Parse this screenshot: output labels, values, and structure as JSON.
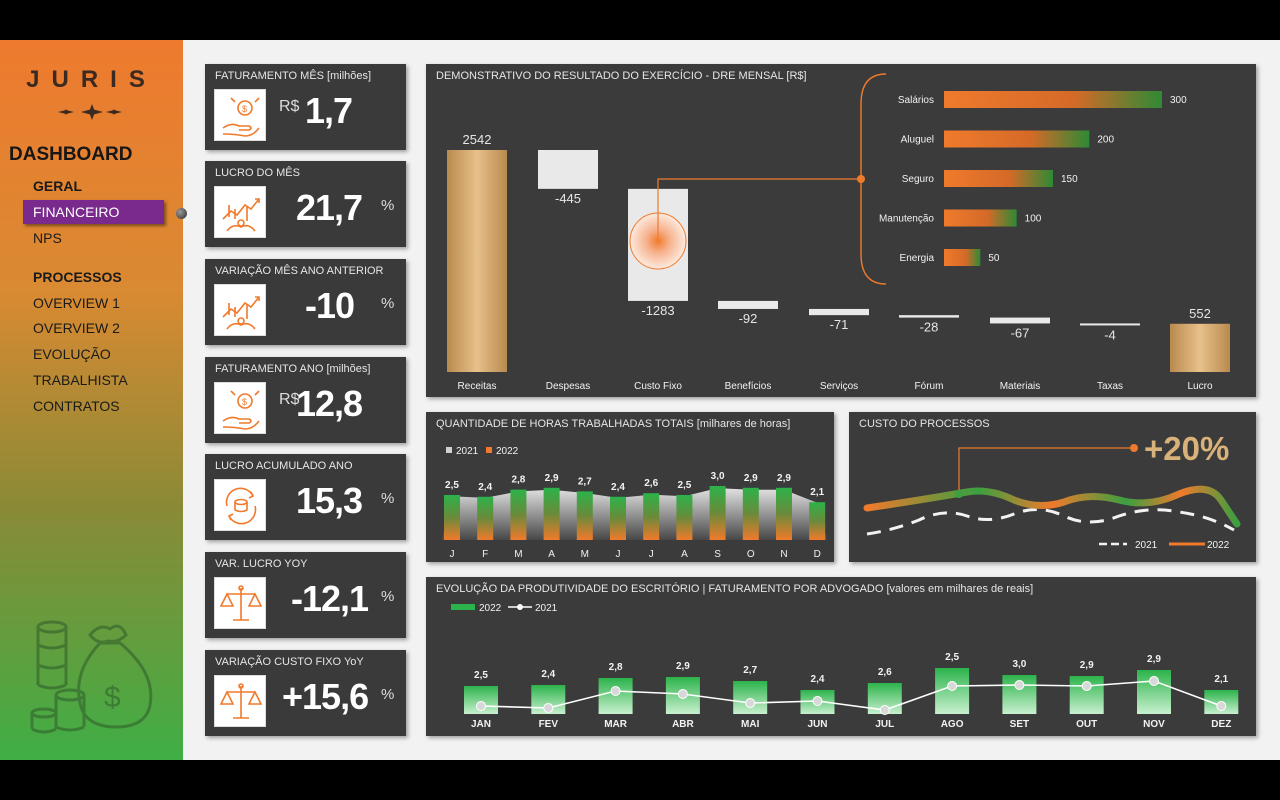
{
  "sidebar": {
    "logo": "JURIS",
    "title": "DASHBOARD",
    "items": [
      {
        "label": "GERAL",
        "head": true
      },
      {
        "label": "FINANCEIRO",
        "active": true
      },
      {
        "label": "NPS"
      },
      {
        "label": "PROCESSOS",
        "head": true
      },
      {
        "label": "OVERVIEW 1"
      },
      {
        "label": "OVERVIEW 2"
      },
      {
        "label": "EVOLUÇÃO"
      },
      {
        "label": "TRABALHISTA"
      },
      {
        "label": "CONTRATOS"
      }
    ]
  },
  "kpis": [
    {
      "label": "FATURAMENTO MÊS [milhões]",
      "prefix": "R$",
      "value": "1,7",
      "suffix": "",
      "icon": "hand-money-icon"
    },
    {
      "label": "LUCRO DO MÊS",
      "prefix": "",
      "value": "21,7",
      "suffix": "%",
      "icon": "growth-chart-icon"
    },
    {
      "label": "VARIAÇÃO MÊS ANO ANTERIOR",
      "prefix": "",
      "value": "-10",
      "suffix": "%",
      "icon": "growth-chart-icon"
    },
    {
      "label": "FATURAMENTO ANO [milhões]",
      "prefix": "R$",
      "value": "12,8",
      "suffix": "",
      "icon": "hand-money-icon"
    },
    {
      "label": "LUCRO ACUMULADO ANO",
      "prefix": "",
      "value": "15,3",
      "suffix": "%",
      "icon": "coins-cycle-icon"
    },
    {
      "label": "VAR. LUCRO YOY",
      "prefix": "",
      "value": "-12,1",
      "suffix": "%",
      "icon": "scale-icon"
    },
    {
      "label": "VARIAÇÃO CUSTO FIXO YoY",
      "prefix": "",
      "value": "+15,6",
      "suffix": "%",
      "icon": "scale-icon"
    }
  ],
  "dre": {
    "title": "DEMONSTRATIVO DO RESULTADO DO EXERCÍCIO - DRE MENSAL [R$]",
    "chart_data": {
      "type": "bar",
      "categories": [
        "Receitas",
        "Despesas",
        "Custo Fixo",
        "Benefícios",
        "Serviços",
        "Fórum",
        "Materiais",
        "Taxas",
        "Lucro"
      ],
      "values": [
        2542,
        -445,
        -1283,
        -92,
        -71,
        -28,
        -67,
        -4,
        552
      ],
      "labels": [
        "2542",
        "-445",
        "-1283",
        "-92",
        "-71",
        "-28",
        "-67",
        "-4",
        "552"
      ]
    },
    "breakdown": {
      "type": "bar",
      "categories": [
        "Salários",
        "Aluguel",
        "Seguro",
        "Manutenção",
        "Energia"
      ],
      "values": [
        300,
        200,
        150,
        100,
        50
      ]
    }
  },
  "horas": {
    "title": "QUANTIDADE DE HORAS TRABALHADAS TOTAIS [milhares de horas]",
    "legend": [
      "2021",
      "2022"
    ],
    "chart_data": {
      "type": "bar",
      "categories": [
        "J",
        "F",
        "M",
        "A",
        "M",
        "J",
        "J",
        "A",
        "S",
        "O",
        "N",
        "D"
      ],
      "series": [
        {
          "name": "2022",
          "values": [
            2.5,
            2.4,
            2.8,
            2.9,
            2.7,
            2.4,
            2.6,
            2.5,
            3.0,
            2.9,
            2.9,
            2.1
          ]
        }
      ],
      "labels": [
        "2,5",
        "2,4",
        "2,8",
        "2,9",
        "2,7",
        "2,4",
        "2,6",
        "2,5",
        "3,0",
        "2,9",
        "2,9",
        "2,1"
      ]
    }
  },
  "custo": {
    "title": "CUSTO DO PROCESSOS",
    "highlight": "+20%",
    "legend": [
      "2021",
      "2022"
    ]
  },
  "produtividade": {
    "title": "EVOLUÇÃO DA PRODUTIVIDADE DO ESCRITÓRIO | FATURAMENTO POR ADVOGADO [valores em milhares de reais]",
    "legend": [
      "2022",
      "2021"
    ],
    "chart_data": {
      "type": "bar",
      "categories": [
        "JAN",
        "FEV",
        "MAR",
        "ABR",
        "MAI",
        "JUN",
        "JUL",
        "AGO",
        "SET",
        "OUT",
        "NOV",
        "DEZ"
      ],
      "series": [
        {
          "name": "2022",
          "values": [
            2.5,
            2.4,
            2.8,
            2.9,
            2.7,
            2.4,
            2.6,
            2.5,
            3.0,
            2.9,
            2.9,
            2.1
          ]
        }
      ],
      "labels": [
        "2,5",
        "2,4",
        "2,8",
        "2,9",
        "2,7",
        "2,4",
        "2,6",
        "2,5",
        "3,0",
        "2,9",
        "2,9",
        "2,1"
      ]
    }
  },
  "colors": {
    "orange": "#ee7a2e",
    "green": "#2db24a",
    "purple": "#7a2a8c",
    "panel": "#3b3b3b"
  }
}
